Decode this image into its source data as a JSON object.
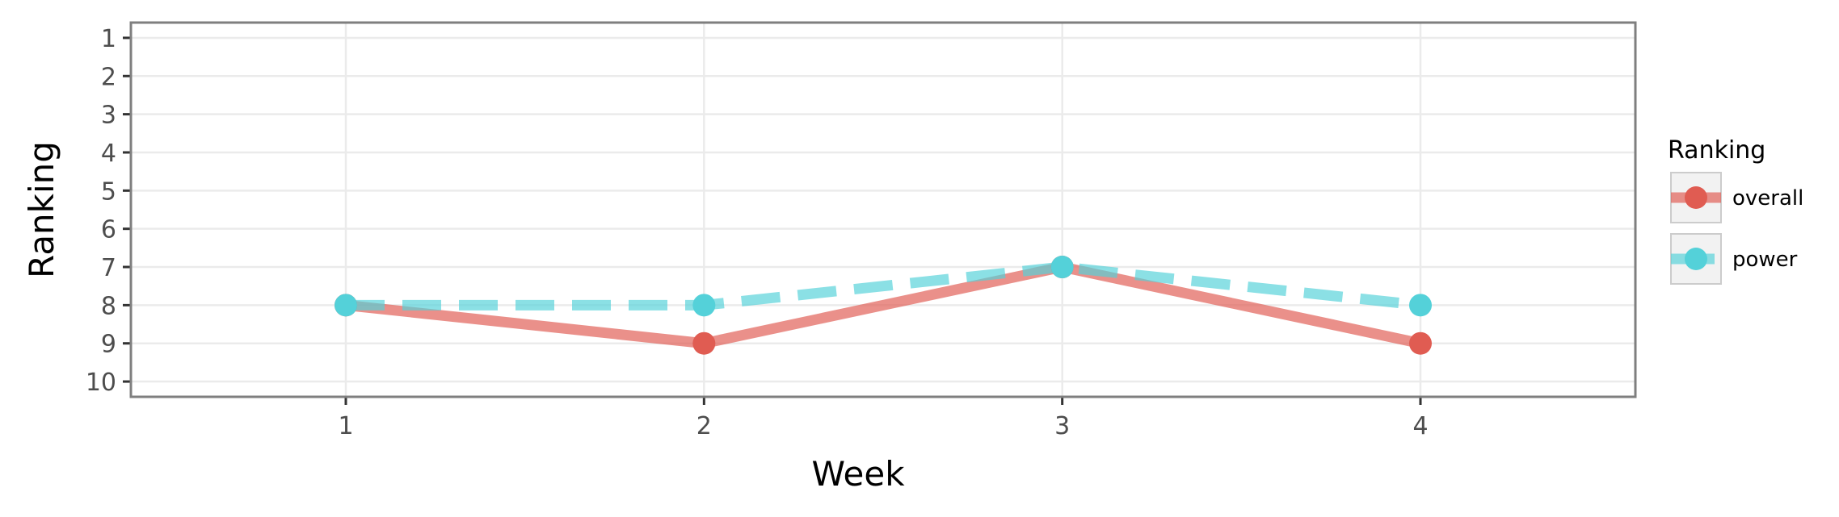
{
  "chart_data": {
    "type": "line",
    "x": [
      1,
      2,
      3,
      4
    ],
    "xlabel": "Week",
    "ylabel": "Ranking",
    "xlim": [
      0.4,
      4.6
    ],
    "ylim": [
      10.4,
      0.6
    ],
    "y_reversed": true,
    "x_ticks": [
      "1",
      "2",
      "3",
      "4"
    ],
    "y_ticks": [
      "1",
      "2",
      "3",
      "4",
      "5",
      "6",
      "7",
      "8",
      "9",
      "10"
    ],
    "grid": true,
    "legend": {
      "title": "Ranking",
      "position": "right"
    },
    "series": [
      {
        "name": "overall",
        "values": [
          8,
          9,
          7,
          9
        ],
        "color": "#e05c52",
        "line_style": "solid"
      },
      {
        "name": "power",
        "values": [
          8,
          8,
          7,
          8
        ],
        "color": "#54d1d9",
        "line_style": "dashed"
      }
    ]
  }
}
